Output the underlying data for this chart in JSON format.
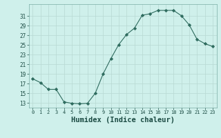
{
  "x": [
    0,
    1,
    2,
    3,
    4,
    5,
    6,
    7,
    8,
    9,
    10,
    11,
    12,
    13,
    14,
    15,
    16,
    17,
    18,
    19,
    20,
    21,
    22,
    23
  ],
  "y": [
    18.0,
    17.2,
    15.8,
    15.8,
    13.2,
    12.9,
    12.8,
    12.9,
    15.0,
    19.0,
    22.2,
    25.1,
    27.2,
    28.5,
    31.2,
    31.5,
    32.2,
    32.2,
    32.2,
    31.1,
    29.2,
    26.2,
    25.3,
    24.7
  ],
  "line_color": "#2e6b5e",
  "marker": "D",
  "marker_size": 2.2,
  "bg_color": "#cff0eb",
  "grid_color": "#b8d8d2",
  "xlabel": "Humidex (Indice chaleur)",
  "xlabel_fontsize": 7.5,
  "ytick_labels": [
    "13",
    "15",
    "17",
    "19",
    "21",
    "23",
    "25",
    "27",
    "29",
    "31"
  ],
  "ytick_vals": [
    13,
    15,
    17,
    19,
    21,
    23,
    25,
    27,
    29,
    31
  ],
  "ylim": [
    12.0,
    33.5
  ],
  "xlim": [
    -0.5,
    23.5
  ]
}
